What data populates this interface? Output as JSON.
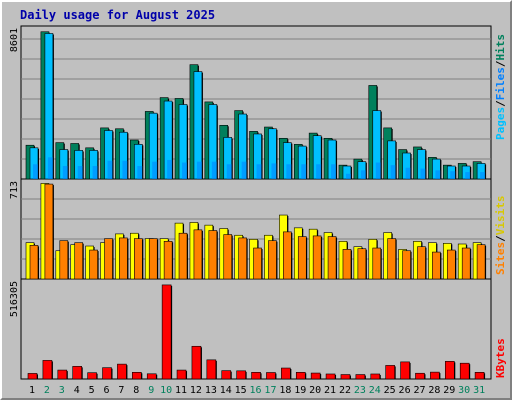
{
  "title": "Daily usage for August 2025",
  "colors": {
    "background": "#c0c0c0",
    "panel": "#c0c0c0",
    "title": "#0000aa",
    "hits": "#00805c",
    "files": "#00c0ff",
    "pages": "#0080ff",
    "visits": "#ffff00",
    "sites": "#ff8000",
    "kbytes": "#ff0000",
    "weekend_day": "#00805c",
    "weekday": "#000000"
  },
  "labels": {
    "pages": "Pages",
    "files": "Files",
    "hits": "Hits",
    "sites": "Sites",
    "visits": "Visits",
    "kbytes": "KBytes",
    "separator": "/"
  },
  "chart_data": [
    {
      "type": "bar",
      "panel": "top",
      "y_max_label": "8601",
      "ylim": [
        0,
        8601
      ],
      "categories": [
        "1",
        "2",
        "3",
        "4",
        "5",
        "6",
        "7",
        "8",
        "9",
        "10",
        "11",
        "12",
        "13",
        "14",
        "15",
        "16",
        "17",
        "18",
        "19",
        "20",
        "21",
        "22",
        "23",
        "24",
        "25",
        "26",
        "27",
        "28",
        "29",
        "30",
        "31"
      ],
      "weekend_days": [
        "2",
        "3",
        "9",
        "10",
        "16",
        "17",
        "23",
        "24",
        "30",
        "31"
      ],
      "series": [
        {
          "name": "Hits",
          "values": [
            1950,
            8500,
            2100,
            2050,
            1800,
            2950,
            2900,
            2250,
            3900,
            4700,
            4650,
            6600,
            4450,
            3100,
            3950,
            2750,
            3000,
            2350,
            2000,
            2650,
            2350,
            800,
            1150,
            5400,
            2950,
            1700,
            1850,
            1250,
            800,
            900,
            1000
          ]
        },
        {
          "name": "Files",
          "values": [
            1800,
            8400,
            1700,
            1650,
            1650,
            2800,
            2700,
            2000,
            3800,
            4500,
            4300,
            6200,
            4300,
            2400,
            3750,
            2600,
            2900,
            2100,
            1900,
            2500,
            2250,
            750,
            1000,
            3950,
            2200,
            1500,
            1700,
            1150,
            750,
            750,
            900
          ]
        },
        {
          "name": "Pages",
          "values": [
            850,
            1250,
            750,
            750,
            750,
            1050,
            1050,
            750,
            1000,
            1100,
            950,
            1000,
            1000,
            850,
            1000,
            850,
            900,
            850,
            850,
            850,
            850,
            300,
            500,
            950,
            800,
            650,
            600,
            500,
            450,
            400,
            400
          ]
        }
      ]
    },
    {
      "type": "bar",
      "panel": "middle",
      "y_max_label": "713",
      "ylim": [
        0,
        713
      ],
      "categories": [
        "1",
        "2",
        "3",
        "4",
        "5",
        "6",
        "7",
        "8",
        "9",
        "10",
        "11",
        "12",
        "13",
        "14",
        "15",
        "16",
        "17",
        "18",
        "19",
        "20",
        "21",
        "22",
        "23",
        "24",
        "25",
        "26",
        "27",
        "28",
        "29",
        "30",
        "31"
      ],
      "series": [
        {
          "name": "Visits",
          "values": [
            270,
            710,
            210,
            255,
            245,
            270,
            335,
            340,
            300,
            300,
            415,
            420,
            400,
            375,
            325,
            295,
            325,
            475,
            380,
            370,
            345,
            280,
            240,
            295,
            345,
            220,
            280,
            270,
            265,
            260,
            270
          ]
        },
        {
          "name": "Sites",
          "values": [
            250,
            705,
            285,
            270,
            215,
            300,
            305,
            300,
            300,
            280,
            340,
            365,
            360,
            330,
            305,
            230,
            285,
            350,
            315,
            320,
            315,
            220,
            225,
            230,
            300,
            210,
            240,
            200,
            215,
            230,
            255
          ]
        }
      ]
    },
    {
      "type": "bar",
      "panel": "bottom",
      "y_max_label": "516305",
      "ylim": [
        0,
        516305
      ],
      "categories": [
        "1",
        "2",
        "3",
        "4",
        "5",
        "6",
        "7",
        "8",
        "9",
        "10",
        "11",
        "12",
        "13",
        "14",
        "15",
        "16",
        "17",
        "18",
        "19",
        "20",
        "21",
        "22",
        "23",
        "24",
        "25",
        "26",
        "27",
        "28",
        "29",
        "30",
        "31"
      ],
      "series": [
        {
          "name": "KBytes",
          "values": [
            30000,
            100000,
            48000,
            68000,
            34000,
            61000,
            80000,
            36000,
            28000,
            506000,
            48000,
            176000,
            103000,
            45000,
            44000,
            36000,
            35000,
            59000,
            36000,
            32000,
            27000,
            24000,
            24000,
            27000,
            73000,
            92000,
            31000,
            37000,
            95000,
            85000,
            36000
          ]
        }
      ]
    }
  ]
}
